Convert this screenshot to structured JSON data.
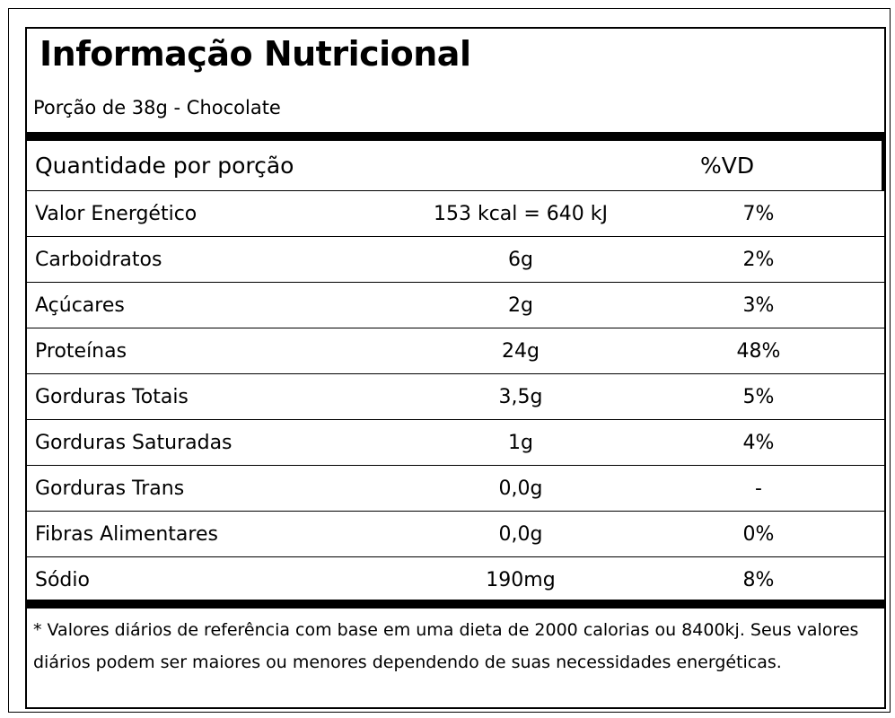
{
  "label": {
    "title": "Informação Nutricional",
    "portion": "Porção de 38g - Chocolate",
    "header": {
      "quantity_label": "Quantidade por porção",
      "vd_label": "%VD"
    },
    "rows": [
      {
        "name": "Valor Energético",
        "amount": "153 kcal =  640 kJ",
        "vd": "7%"
      },
      {
        "name": "Carboidratos",
        "amount": "6g",
        "vd": "2%"
      },
      {
        "name": "Açúcares",
        "amount": "2g",
        "vd": "3%"
      },
      {
        "name": "Proteínas",
        "amount": "24g",
        "vd": "48%"
      },
      {
        "name": "Gorduras Totais",
        "amount": "3,5g",
        "vd": "5%"
      },
      {
        "name": "Gorduras Saturadas",
        "amount": "1g",
        "vd": "4%"
      },
      {
        "name": "Gorduras Trans",
        "amount": "0,0g",
        "vd": "-"
      },
      {
        "name": "Fibras Alimentares",
        "amount": "0,0g",
        "vd": "0%"
      },
      {
        "name": "Sódio",
        "amount": "190mg",
        "vd": "8%"
      }
    ],
    "footnote": "* Valores diários de referência com base em uma dieta de 2000 calorias ou 8400kj. Seus valores diários podem ser maiores ou menores dependendo de suas necessidades energéticas."
  }
}
